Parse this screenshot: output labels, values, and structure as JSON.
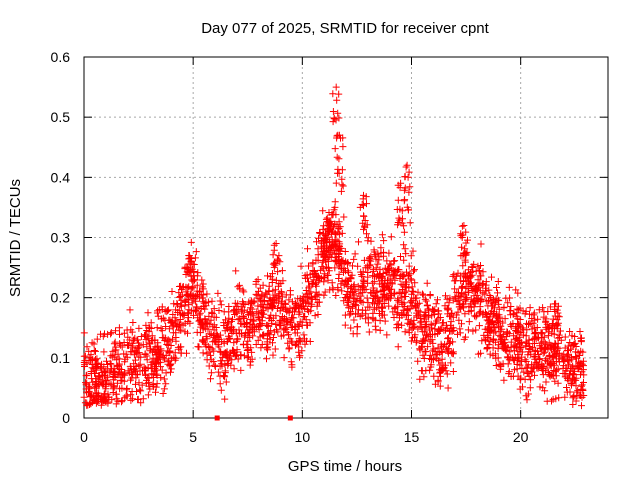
{
  "chart_data": {
    "type": "scatter",
    "title": "Day 077 of 2025, SRMTID for receiver cpnt",
    "xlabel": "GPS time / hours",
    "ylabel": "SRMTID / TECUs",
    "xlim": [
      0,
      24
    ],
    "ylim": [
      0,
      0.6
    ],
    "x_ticks": [
      0,
      5,
      10,
      15,
      20
    ],
    "y_ticks": [
      0,
      0.1,
      0.2,
      0.3,
      0.4,
      0.5,
      0.6
    ],
    "x_tick_labels": [
      "0",
      "5",
      "10",
      "15",
      "20"
    ],
    "y_tick_labels": [
      "0",
      "0.1",
      "0.2",
      "0.3",
      "0.4",
      "0.5",
      "0.6"
    ],
    "grid": true,
    "marker_color": "#ff0000",
    "series": [
      {
        "name": "SRMTID",
        "marker": "plus",
        "trend": {
          "x": [
            0,
            0.5,
            1,
            1.5,
            2,
            2.5,
            3,
            3.5,
            4,
            4.5,
            5,
            5.5,
            6,
            6.5,
            7,
            7.5,
            8,
            8.5,
            9,
            9.5,
            10,
            10.5,
            11,
            11.5,
            12,
            12.5,
            13,
            13.5,
            14,
            14.5,
            15,
            15.5,
            16,
            16.5,
            17,
            17.5,
            18,
            18.5,
            19,
            19.5,
            20,
            20.5,
            21,
            21.5,
            22,
            22.5,
            23
          ],
          "y": [
            0.07,
            0.06,
            0.07,
            0.08,
            0.09,
            0.09,
            0.1,
            0.11,
            0.13,
            0.18,
            0.22,
            0.16,
            0.13,
            0.12,
            0.16,
            0.15,
            0.16,
            0.17,
            0.19,
            0.15,
            0.17,
            0.22,
            0.27,
            0.3,
            0.23,
            0.2,
            0.23,
            0.21,
            0.22,
            0.22,
            0.2,
            0.15,
            0.13,
            0.12,
            0.18,
            0.22,
            0.2,
            0.17,
            0.15,
            0.13,
            0.12,
            0.11,
            0.11,
            0.11,
            0.1,
            0.08,
            0.07
          ]
        },
        "spread": 0.035,
        "peaks": [
          {
            "x": 4.8,
            "y": 0.27
          },
          {
            "x": 8.8,
            "y": 0.29
          },
          {
            "x": 11.1,
            "y": 0.33
          },
          {
            "x": 11.55,
            "y": 0.55
          },
          {
            "x": 11.7,
            "y": 0.47
          },
          {
            "x": 12.8,
            "y": 0.37
          },
          {
            "x": 14.5,
            "y": 0.39
          },
          {
            "x": 14.8,
            "y": 0.42
          },
          {
            "x": 17.4,
            "y": 0.32
          },
          {
            "x": 21.6,
            "y": 0.19
          }
        ],
        "zero_points": [
          {
            "x": 6.1,
            "y": 0
          },
          {
            "x": 9.45,
            "y": 0
          }
        ]
      }
    ]
  }
}
